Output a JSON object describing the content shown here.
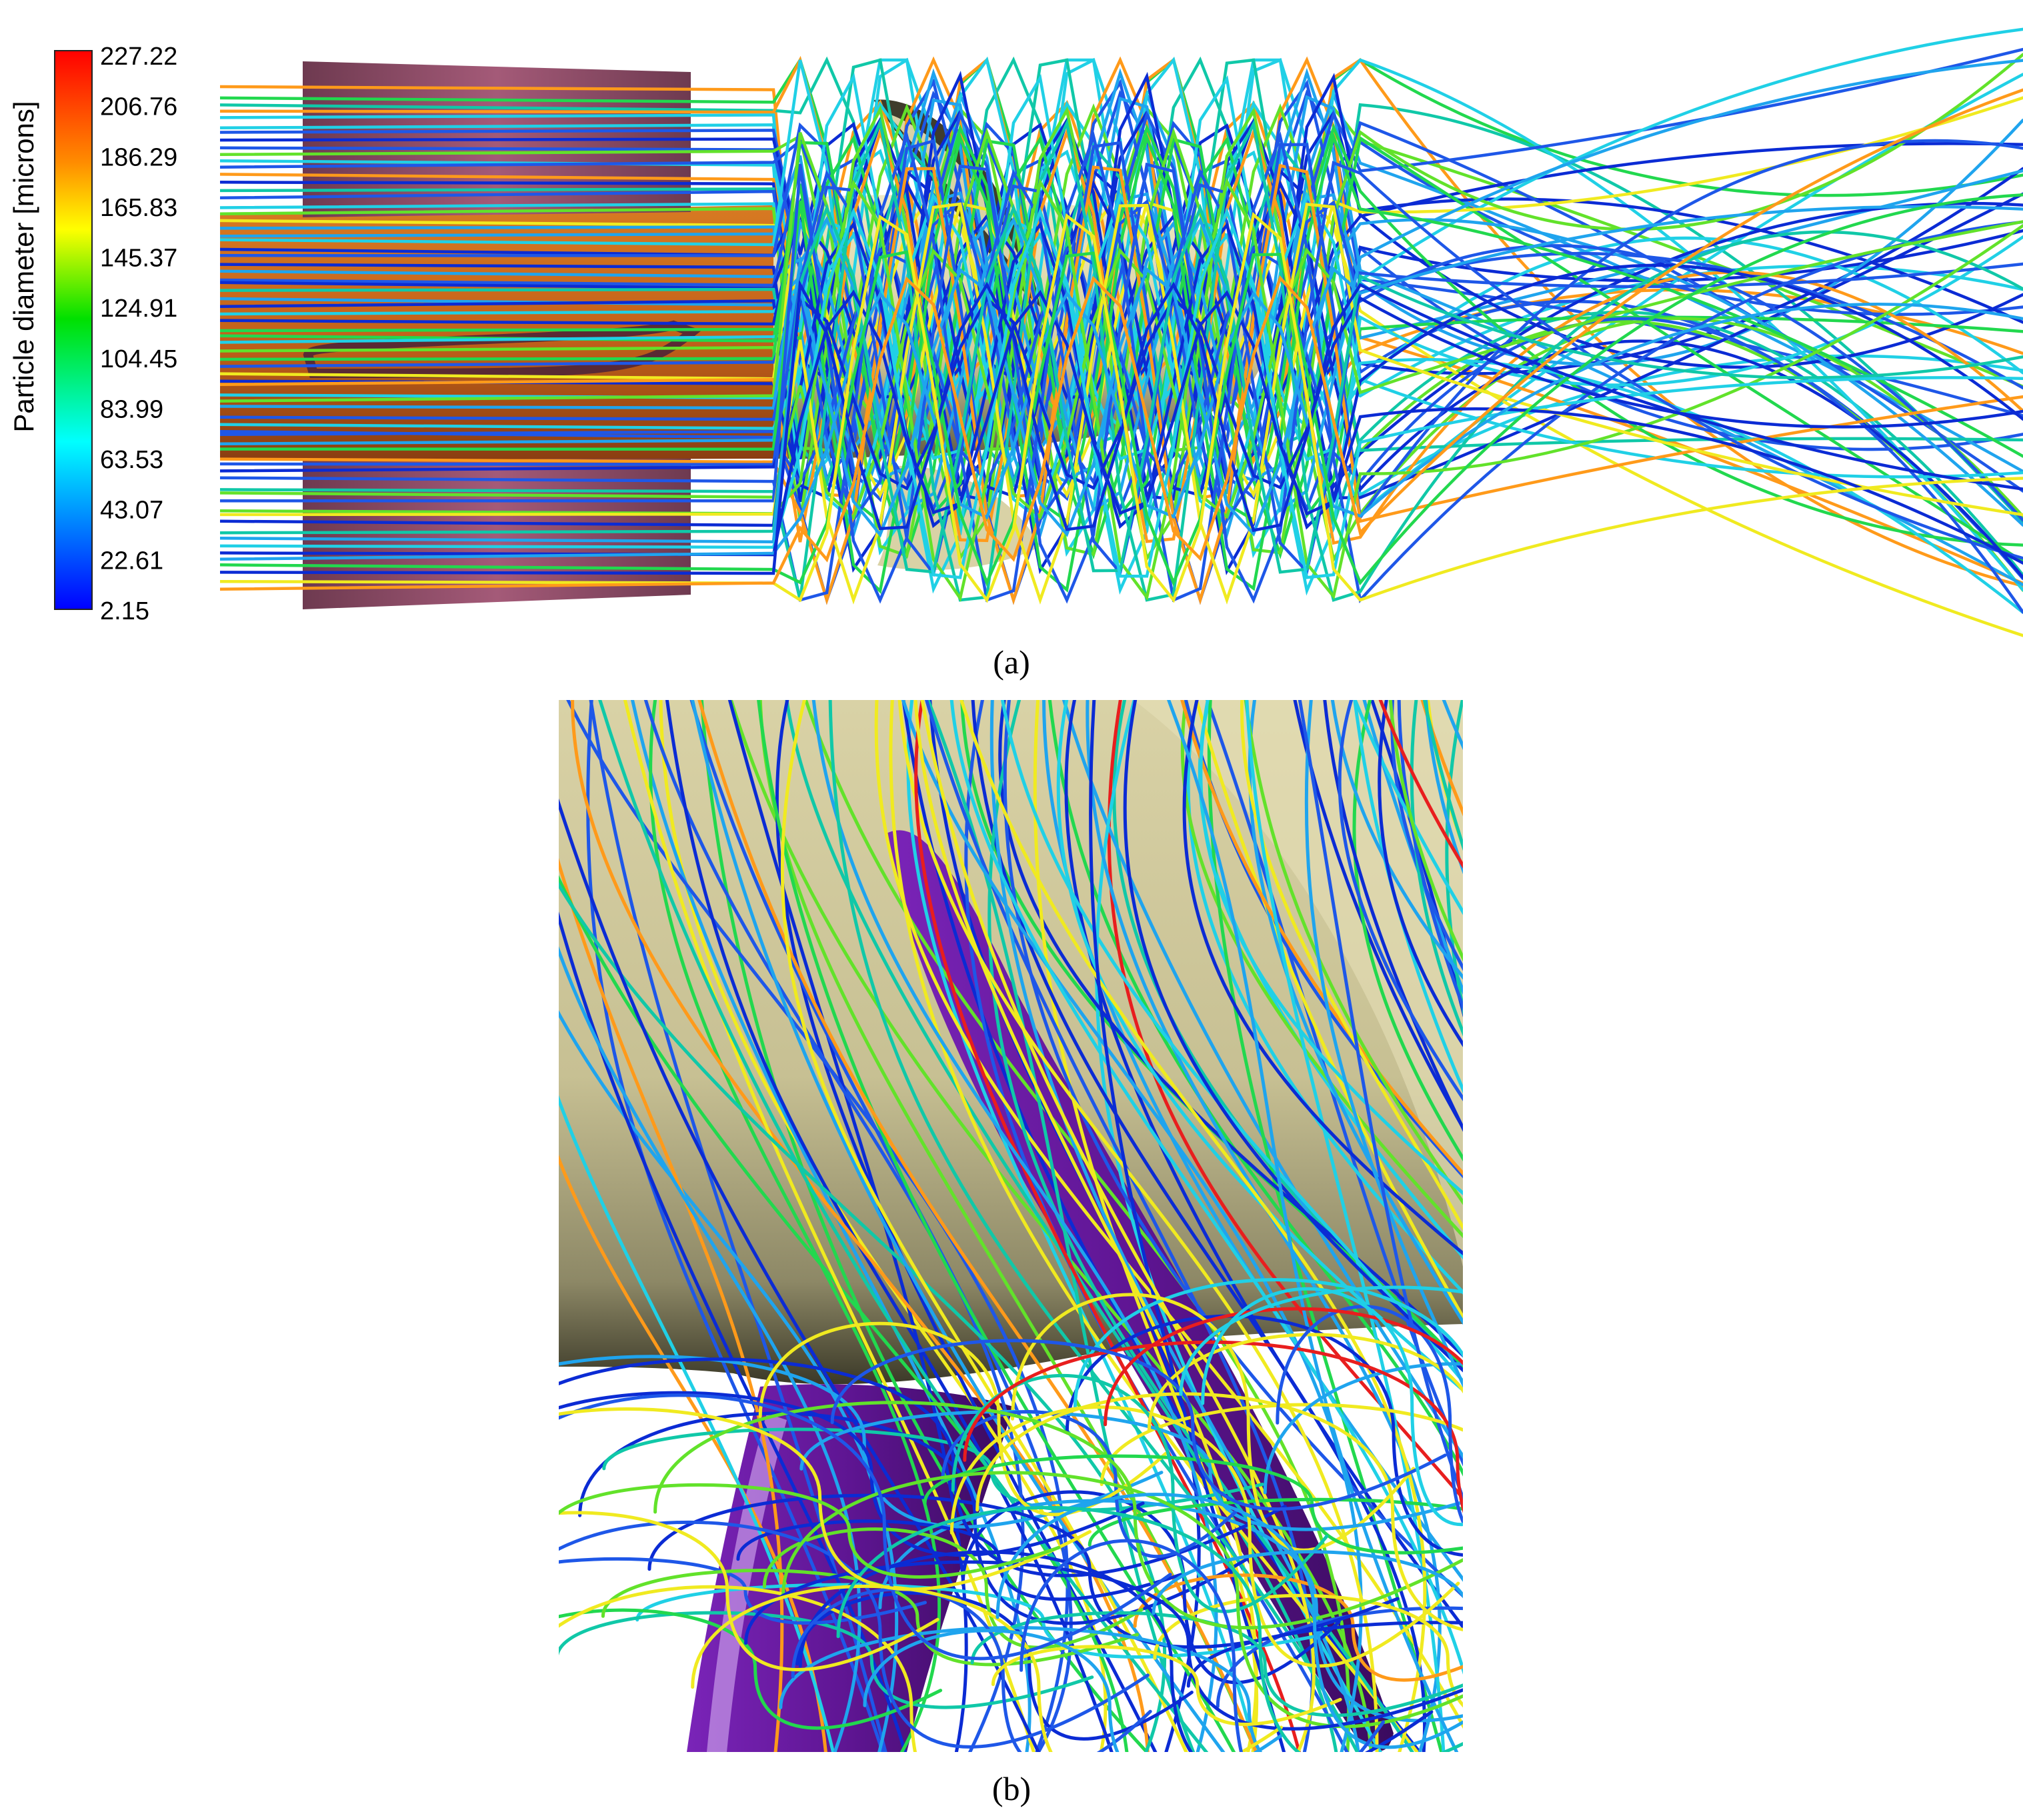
{
  "colorbar": {
    "title": "Particle diameter [microns]",
    "ticks": [
      "227.22",
      "206.76",
      "186.29",
      "165.83",
      "145.37",
      "124.91",
      "104.45",
      "83.99",
      "63.53",
      "43.07",
      "22.61",
      "2.15"
    ],
    "colors": [
      "#ff0000",
      "#ff8c00",
      "#ffff00",
      "#00e000",
      "#00ffff",
      "#0000ff"
    ]
  },
  "panels": [
    {
      "id": "a",
      "caption": "(a)",
      "letter": "a"
    },
    {
      "id": "b",
      "caption": "(b)",
      "letter": "b"
    }
  ],
  "palette": {
    "trajectory_colors": [
      "#0b2bd4",
      "#1e57e8",
      "#1fa4ee",
      "#20d0e6",
      "#10c8a8",
      "#22d84e",
      "#62e22a",
      "#f0ea20",
      "#ff9a1a",
      "#e81e1e"
    ],
    "hub": "#d9d2a6",
    "blade_dark": "#4a4636",
    "strut": "#8e4a64",
    "duct": "#c8691b",
    "blade_purple": "#6a1aa0"
  }
}
